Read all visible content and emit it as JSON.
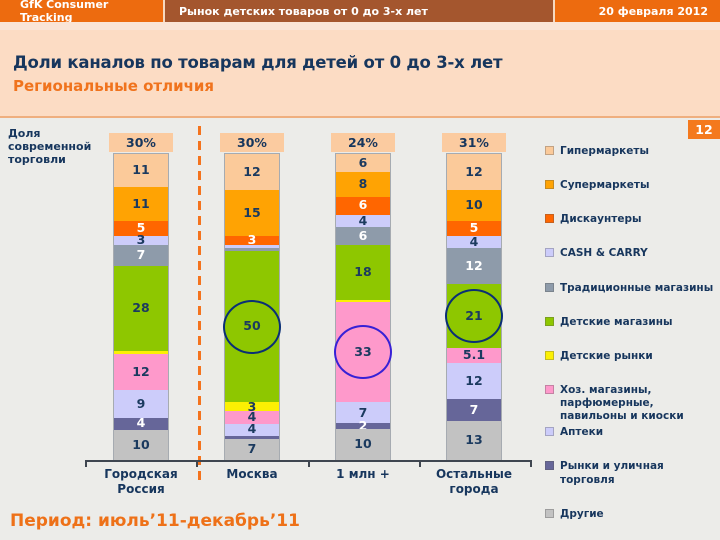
{
  "header": {
    "left": "GfK Consumer Tracking",
    "center": "Рынок детских товаров от 0 до 3-х лет",
    "right": "20 февраля 2012"
  },
  "page_number": "12",
  "title": "Доли каналов по товарам для детей от 0 до 3-х лет",
  "subtitle": "Региональные отличия",
  "side_label": "Доля современной торговли",
  "footer": "Период: июль’11-декабрь’11",
  "colors": {
    "header_orange": "#ED6B0F",
    "header_brown": "#A4562E",
    "title_band": "#FCDCC4",
    "accent_orange": "#F0731D",
    "navy_text": "#17365D",
    "share_box": "#FBCBA0",
    "background": "#ECECE9"
  },
  "chart_data": {
    "type": "bar",
    "subtype": "100%-stacked-vertical",
    "unit": "% share of channel",
    "categories": [
      "Городская Россия",
      "Москва",
      "1 млн +",
      "Остальные города"
    ],
    "modern_trade_share": [
      "30%",
      "30%",
      "24%",
      "31%"
    ],
    "legend_position": "right",
    "legend": [
      {
        "name": "Гипермаркеты",
        "color": "#FBCA9A"
      },
      {
        "name": "Супермаркеты",
        "color": "#FFA303"
      },
      {
        "name": "Дискаунтеры",
        "color": "#FF6600"
      },
      {
        "name": "CASH & CARRY",
        "color": "#CCCCFA"
      },
      {
        "name": "Традиционные магазины",
        "color": "#8E9BAA"
      },
      {
        "name": "Детские магазины",
        "color": "#8EC700"
      },
      {
        "name": "Детские рынки",
        "color": "#FCF003"
      },
      {
        "name": "Хоз. магазины, парфюмерные, павильоны и киоски",
        "color": "#FE99CB"
      },
      {
        "name": "Аптеки",
        "color": "#CCCCFA"
      },
      {
        "name": "Рынки и уличная торговля",
        "color": "#666699"
      },
      {
        "name": "Другие",
        "color": "#C2C2C2"
      }
    ],
    "bars": [
      {
        "category": "Городская Россия",
        "share_header": "30%",
        "segments": [
          {
            "series": "Гипермаркеты",
            "value": 11,
            "label": "11"
          },
          {
            "series": "Супермаркеты",
            "value": 11,
            "label": "11"
          },
          {
            "series": "Дискаунтеры",
            "value": 5,
            "label": "5",
            "text": "light"
          },
          {
            "series": "CASH & CARRY",
            "value": 3,
            "label": "3"
          },
          {
            "series": "Традиционные магазины",
            "value": 7,
            "label": "7",
            "text": "light"
          },
          {
            "series": "Детские магазины",
            "value": 28,
            "label": "28"
          },
          {
            "series": "Детские рынки",
            "value": 1,
            "label": ""
          },
          {
            "series": "Хоз. магазины, парфюмерные, павильоны и киоски",
            "value": 12,
            "label": "12"
          },
          {
            "series": "Аптеки",
            "value": 9,
            "label": "9"
          },
          {
            "series": "Рынки и уличная торговля",
            "value": 4,
            "label": "4",
            "text": "light"
          },
          {
            "series": "Другие",
            "value": 10,
            "label": "10"
          }
        ]
      },
      {
        "category": "Москва",
        "share_header": "30%",
        "segments": [
          {
            "series": "Гипермаркеты",
            "value": 12,
            "label": "12"
          },
          {
            "series": "Супермаркеты",
            "value": 15,
            "label": "15"
          },
          {
            "series": "Дискаунтеры",
            "value": 3,
            "label": "3",
            "text": "light"
          },
          {
            "series": "CASH & CARRY",
            "value": 1,
            "label": ""
          },
          {
            "series": "Традиционные магазины",
            "value": 1,
            "label": ""
          },
          {
            "series": "Детские магазины",
            "value": 50,
            "label": "50"
          },
          {
            "series": "Детские рынки",
            "value": 3,
            "label": "3"
          },
          {
            "series": "Хоз. магазины, парфюмерные, павильоны и киоски",
            "value": 4,
            "label": "4"
          },
          {
            "series": "Аптеки",
            "value": 4,
            "label": "4"
          },
          {
            "series": "Рынки и уличная торговля",
            "value": 1,
            "label": ""
          },
          {
            "series": "Другие",
            "value": 7,
            "label": "7"
          }
        ]
      },
      {
        "category": "1 млн +",
        "share_header": "24%",
        "segments": [
          {
            "series": "Гипермаркеты",
            "value": 6,
            "label": "6"
          },
          {
            "series": "Супермаркеты",
            "value": 8,
            "label": "8"
          },
          {
            "series": "Дискаунтеры",
            "value": 6,
            "label": "6",
            "text": "light"
          },
          {
            "series": "CASH & CARRY",
            "value": 4,
            "label": "4"
          },
          {
            "series": "Традиционные магазины",
            "value": 6,
            "label": "6",
            "text": "light"
          },
          {
            "series": "Детские магазины",
            "value": 18,
            "label": "18"
          },
          {
            "series": "Детские рынки",
            "value": 0.5,
            "label": ""
          },
          {
            "series": "Хоз. магазины, парфюмерные, павильоны и киоски",
            "value": 33,
            "label": "33"
          },
          {
            "series": "Аптеки",
            "value": 7,
            "label": "7"
          },
          {
            "series": "Рынки и уличная торговля",
            "value": 2,
            "label": "2",
            "text": "light"
          },
          {
            "series": "Другие",
            "value": 10,
            "label": "10"
          }
        ]
      },
      {
        "category": "Остальные города",
        "share_header": "31%",
        "segments": [
          {
            "series": "Гипермаркеты",
            "value": 12,
            "label": "12"
          },
          {
            "series": "Супермаркеты",
            "value": 10,
            "label": "10"
          },
          {
            "series": "Дискаунтеры",
            "value": 5,
            "label": "5",
            "text": "light"
          },
          {
            "series": "CASH & CARRY",
            "value": 4,
            "label": "4"
          },
          {
            "series": "Традиционные магазины",
            "value": 12,
            "label": "12",
            "text": "light"
          },
          {
            "series": "Детские магазины",
            "value": 21,
            "label": "21"
          },
          {
            "series": "Детские рынки",
            "value": 0,
            "label": ""
          },
          {
            "series": "Хоз. магазины, парфюмерные, павильоны и киоски",
            "value": 5.1,
            "label": "5.1"
          },
          {
            "series": "Аптеки",
            "value": 12,
            "label": "12"
          },
          {
            "series": "Рынки и уличная торговля",
            "value": 7,
            "label": "7",
            "text": "light"
          },
          {
            "series": "Другие",
            "value": 13,
            "label": "13"
          }
        ]
      }
    ],
    "annotations": [
      {
        "bar_index": 1,
        "series": "Детские магазины",
        "value": 50,
        "shape": "circle",
        "color": "#0A2F75"
      },
      {
        "bar_index": 2,
        "series": "Хоз. магазины, парфюмерные, павильоны и киоски",
        "value": 33,
        "shape": "circle",
        "color": "#3721D6"
      },
      {
        "bar_index": 3,
        "series": "Детские магазины",
        "value": 21,
        "shape": "circle",
        "color": "#0A2F75"
      }
    ]
  }
}
